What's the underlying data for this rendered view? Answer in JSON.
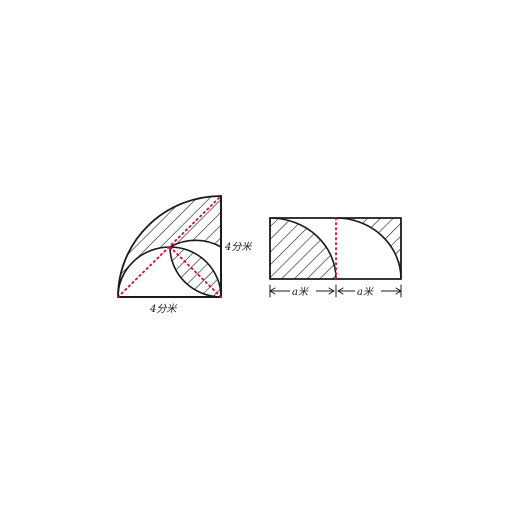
{
  "figure_left": {
    "bottom_label": "4分米",
    "side_label": "4分米"
  },
  "figure_right": {
    "left_width_label": "a米",
    "right_width_label": "a米"
  },
  "colors": {
    "ink": "#1a1a1a",
    "dotted_line": "#d0103a",
    "background": "#ffffff"
  }
}
